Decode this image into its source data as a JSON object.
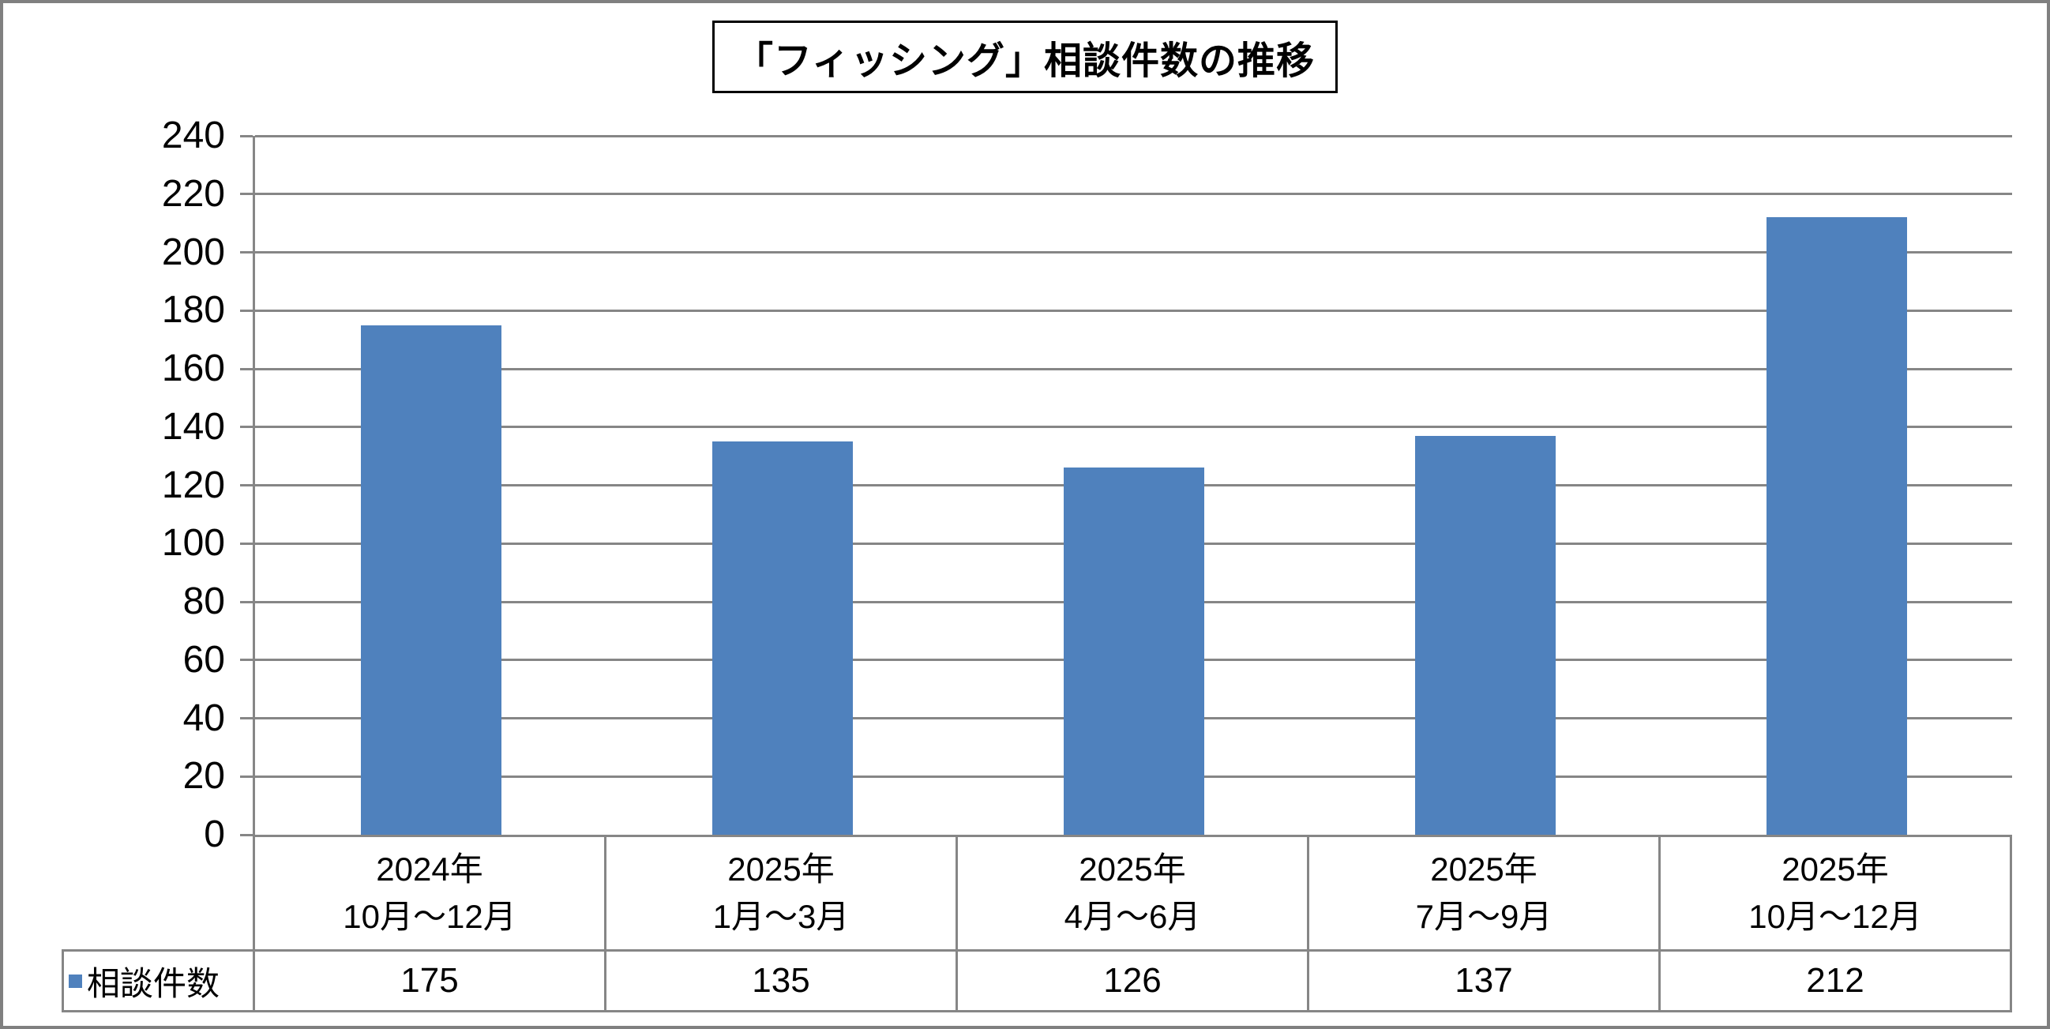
{
  "title": "「フィッシング」相談件数の推移",
  "legend": {
    "label": "相談件数",
    "swatch_color": "#4F81BD"
  },
  "chart_data": {
    "type": "bar",
    "title": "「フィッシング」相談件数の推移",
    "categories": [
      "2024年 10月〜12月",
      "2025年 1月〜3月",
      "2025年 4月〜6月",
      "2025年 7月〜9月",
      "2025年 10月〜12月"
    ],
    "category_label_lines": [
      [
        "2024年",
        "10月〜12月"
      ],
      [
        "2025年",
        "1月〜3月"
      ],
      [
        "2025年",
        "4月〜6月"
      ],
      [
        "2025年",
        "7月〜9月"
      ],
      [
        "2025年",
        "10月〜12月"
      ]
    ],
    "series": [
      {
        "name": "相談件数",
        "values": [
          175,
          135,
          126,
          137,
          212
        ],
        "color": "#4F81BD"
      }
    ],
    "xlabel": "",
    "ylabel": "",
    "ylim": [
      0,
      240
    ],
    "ytick_step": 20,
    "yticks": [
      0,
      20,
      40,
      60,
      80,
      100,
      120,
      140,
      160,
      180,
      200,
      220,
      240
    ],
    "grid": true,
    "legend_position": "data-table-left",
    "data_table_shown": true,
    "colors": {
      "bar": "#4F81BD",
      "gridline": "#868686",
      "table_border": "#868686",
      "frame_border": "#808080",
      "title_border": "#000000",
      "background": "#FFFFFF",
      "text": "#000000"
    }
  }
}
